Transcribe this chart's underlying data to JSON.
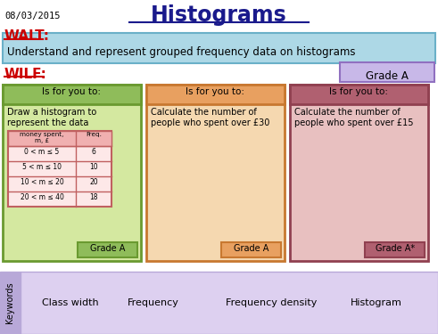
{
  "date": "08/03/2015",
  "title": "Histograms",
  "walt_label": "WALT:",
  "walt_text": "Understand and represent grouped frequency data on histograms",
  "wilf_label": "WILF:",
  "grade_a_box": "Grade A",
  "box1_header": "Is for you to:",
  "box1_body": "Draw a histogram to\nrepresent the data",
  "box1_table_headers": [
    "money spent,\nm, £",
    "Freq."
  ],
  "box1_table_rows": [
    [
      "0 < m ≤ 5",
      "6"
    ],
    [
      "5 < m ≤ 10",
      "10"
    ],
    [
      "10 < m ≤ 20",
      "20"
    ],
    [
      "20 < m ≤ 40",
      "18"
    ]
  ],
  "box1_grade": "Grade A",
  "box2_header": "Is for you to:",
  "box2_body": "Calculate the number of\npeople who spent over £30",
  "box2_grade": "Grade A",
  "box3_header": "Is for you to:",
  "box3_body": "Calculate the number of\npeople who spent over £15",
  "box3_grade": "Grade A*",
  "keywords": [
    "Class width",
    "Frequency",
    "Frequency density",
    "Histogram"
  ],
  "bg_color": "#ffffff",
  "walt_box_color": "#add8e6",
  "walt_box_border": "#6ab0c8",
  "box1_header_color": "#8fbc5a",
  "box1_body_color": "#d4e8a0",
  "box1_border_color": "#6a9a30",
  "box2_header_color": "#e8a060",
  "box2_body_color": "#f5d8b0",
  "box2_border_color": "#c87830",
  "box3_header_color": "#b06070",
  "box3_body_color": "#e8c0c0",
  "box3_border_color": "#904050",
  "grade_box_color": "#c8b8e8",
  "grade_box_border": "#9070c0",
  "keywords_side_color": "#b8a8d8",
  "keywords_bg_color": "#ddd0f0",
  "table_border_color": "#c06060",
  "table_header_color": "#f0b0b0",
  "table_bg_color": "#fde8e8",
  "title_color": "#1a1a8c",
  "walt_color": "#cc0000",
  "wilf_color": "#cc0000"
}
